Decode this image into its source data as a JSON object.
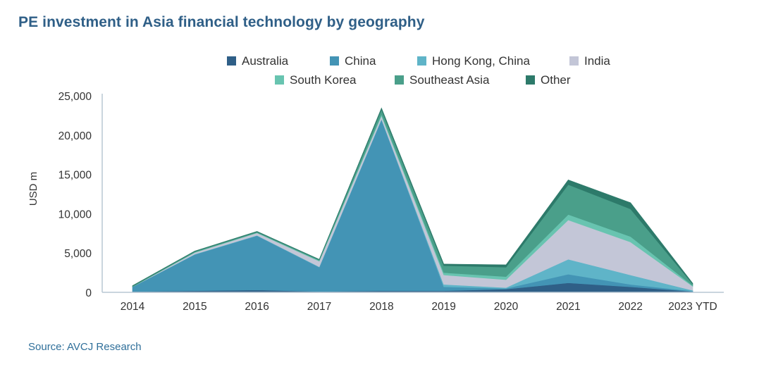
{
  "title": "PE investment in Asia financial technology by geography",
  "source": "Source: AVCJ Research",
  "chart_data": {
    "type": "area",
    "stacked": true,
    "title": "PE investment in Asia financial technology by geography",
    "xlabel": "",
    "ylabel": "USD m",
    "ylim": [
      0,
      25000
    ],
    "yticks": [
      0,
      5000,
      10000,
      15000,
      20000,
      25000
    ],
    "ytick_labels": [
      "0",
      "5,000",
      "10,000",
      "15,000",
      "20,000",
      "25,000"
    ],
    "categories": [
      "2014",
      "2015",
      "2016",
      "2017",
      "2018",
      "2019",
      "2020",
      "2021",
      "2022",
      "2023 YTD"
    ],
    "legend_position": "top-center",
    "series": [
      {
        "name": "Australia",
        "color": "#2f5f87",
        "values": [
          100,
          200,
          300,
          100,
          200,
          200,
          400,
          1200,
          700,
          100
        ]
      },
      {
        "name": "China",
        "color": "#4394b5",
        "values": [
          600,
          4600,
          6900,
          3100,
          21800,
          500,
          100,
          1100,
          300,
          50
        ]
      },
      {
        "name": "Hong Kong, China",
        "color": "#5fb4c8",
        "values": [
          0,
          50,
          50,
          50,
          50,
          300,
          100,
          1900,
          1200,
          100
        ]
      },
      {
        "name": "India",
        "color": "#c3c6d7",
        "values": [
          0,
          200,
          300,
          700,
          400,
          1200,
          1000,
          5000,
          4200,
          500
        ]
      },
      {
        "name": "South Korea",
        "color": "#68c4b0",
        "values": [
          0,
          50,
          50,
          100,
          200,
          300,
          400,
          700,
          700,
          100
        ]
      },
      {
        "name": "Southeast Asia",
        "color": "#4a9f8a",
        "values": [
          100,
          100,
          100,
          100,
          600,
          900,
          1200,
          3800,
          3500,
          200
        ]
      },
      {
        "name": "Other",
        "color": "#2d7a6a",
        "values": [
          50,
          50,
          50,
          50,
          200,
          200,
          300,
          600,
          800,
          100
        ]
      }
    ]
  }
}
